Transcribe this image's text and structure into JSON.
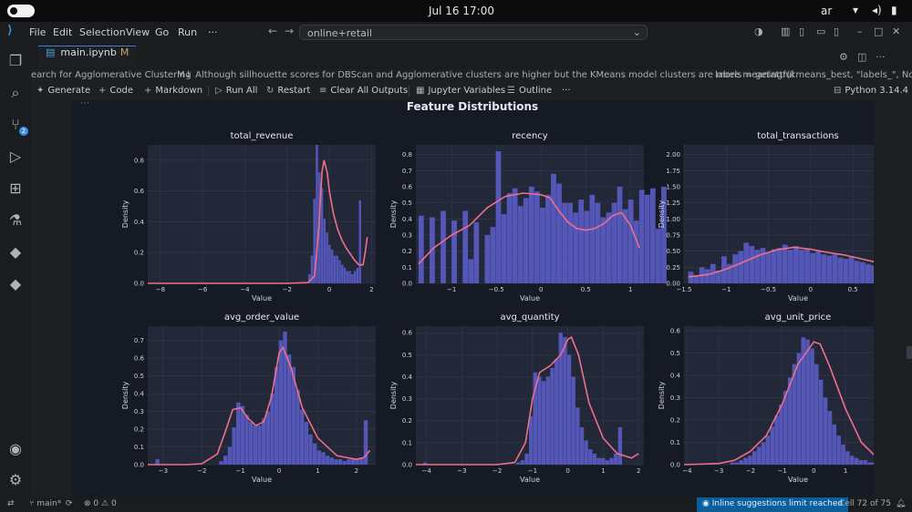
{
  "system_bar": {
    "clock": "Jul 16  17:00",
    "user": "ar"
  },
  "titlebar": {
    "menus": [
      "File",
      "Edit",
      "Selection",
      "View",
      "Go",
      "Run",
      "···"
    ],
    "search_text": "online+retail"
  },
  "tab": {
    "name": "main.ipynb",
    "modified": "M"
  },
  "breadcrumbs": {
    "b1": "earch for Agglomerative Clustering",
    "b2": "M↓ Although sillhouette scores for DBScan and Agglomerative clusters are higher but the KMeans model clusters are more meaningful",
    "b3": "labels = getattr(kmeans_best, \"labels_\", None)"
  },
  "toolbar": {
    "generate": "Generate",
    "code": "Code",
    "markdown": "Markdown",
    "run_all": "Run All",
    "restart": "Restart",
    "clear_outputs": "Clear All Outputs",
    "jupyter_variables": "Jupyter Variables",
    "outline": "Outline",
    "more": "···",
    "kernel": "Python 3.14.4"
  },
  "status": {
    "branch": "main*",
    "problems": "0",
    "warnings": "0",
    "inline_limit": "Inline suggestions limit reached",
    "cell_position": "Cell 72 of 75"
  },
  "colors": {
    "bars": "#5a5cc6",
    "kde": "#ef6f8a",
    "figure_bg": "#161a25",
    "axes_bg": "#232838"
  },
  "chart_data": [
    {
      "type": "histogram",
      "figure_title": "Feature Distributions",
      "title": "total_revenue",
      "xlabel": "Value",
      "ylabel": "Density",
      "xlim": [
        -8.6,
        2.2
      ],
      "ylim": [
        0,
        0.9
      ],
      "xticks": [
        -8,
        -6,
        -4,
        -2,
        0,
        2
      ],
      "yticks": [
        0.0,
        0.2,
        0.4,
        0.6,
        0.8
      ],
      "bin_edges_start": -1.0,
      "bin_width": 0.12,
      "bars": [
        0.06,
        0.18,
        0.55,
        0.9,
        0.72,
        0.62,
        0.42,
        0.33,
        0.25,
        0.22,
        0.18,
        0.18,
        0.15,
        0.12,
        0.1,
        0.08,
        0.08,
        0.06,
        0.08,
        0.1,
        0.54
      ],
      "kde_x": [
        -8.6,
        -2,
        -1,
        -0.7,
        -0.5,
        -0.35,
        -0.25,
        -0.1,
        0,
        0.2,
        0.4,
        0.6,
        0.8,
        1.0,
        1.2,
        1.4,
        1.6,
        1.7,
        1.8
      ],
      "kde_y": [
        0,
        0,
        0.005,
        0.05,
        0.35,
        0.72,
        0.8,
        0.72,
        0.6,
        0.45,
        0.35,
        0.28,
        0.23,
        0.19,
        0.15,
        0.12,
        0.12,
        0.2,
        0.3
      ]
    },
    {
      "type": "histogram",
      "title": "recency",
      "xlabel": "Value",
      "ylabel": "Density",
      "xlim": [
        -1.4,
        1.15
      ],
      "ylim": [
        0,
        0.86
      ],
      "xticks": [
        -1.0,
        -0.5,
        0.0,
        0.5,
        1.0
      ],
      "yticks": [
        0.0,
        0.1,
        0.2,
        0.3,
        0.4,
        0.5,
        0.6,
        0.7,
        0.8
      ],
      "bin_edges_start": -1.37,
      "bin_width": 0.0617,
      "bars": [
        0.42,
        0.0,
        0.41,
        0.0,
        0.45,
        0.0,
        0.39,
        0.0,
        0.45,
        0.15,
        0.38,
        0.0,
        0.3,
        0.35,
        0.82,
        0.43,
        0.56,
        0.59,
        0.48,
        0.53,
        0.6,
        0.57,
        0.47,
        0.55,
        0.68,
        0.62,
        0.5,
        0.5,
        0.44,
        0.52,
        0.45,
        0.55,
        0.5,
        0.41,
        0.44,
        0.5,
        0.6,
        0.46,
        0.52,
        0.39,
        0.58,
        0.55,
        0.59,
        0.34,
        0.6
      ],
      "kde_x": [
        -1.37,
        -1.2,
        -1.0,
        -0.8,
        -0.6,
        -0.4,
        -0.2,
        0,
        0.1,
        0.2,
        0.3,
        0.4,
        0.5,
        0.6,
        0.7,
        0.8,
        0.9,
        1.0,
        1.1
      ],
      "kde_y": [
        0.12,
        0.22,
        0.3,
        0.36,
        0.47,
        0.54,
        0.56,
        0.55,
        0.53,
        0.45,
        0.38,
        0.34,
        0.33,
        0.34,
        0.37,
        0.42,
        0.44,
        0.36,
        0.22
      ]
    },
    {
      "type": "histogram",
      "title": "total_transactions",
      "xlabel": "Value",
      "ylabel": "Density",
      "xlim": [
        -1.5,
        1.2
      ],
      "ylim": [
        0,
        2.15
      ],
      "xticks": [
        -1.5,
        -1.0,
        -0.5,
        0.0,
        0.5,
        1.0
      ],
      "yticks": [
        0.0,
        0.25,
        0.5,
        0.75,
        1.0,
        1.25,
        1.5,
        1.75,
        2.0
      ],
      "bin_edges_start": -1.45,
      "bin_width": 0.0656,
      "bars": [
        0.18,
        0.12,
        0.25,
        0.22,
        0.3,
        0.2,
        0.42,
        0.3,
        0.45,
        0.5,
        0.63,
        0.58,
        0.52,
        0.55,
        0.47,
        0.53,
        0.55,
        0.6,
        0.52,
        0.58,
        0.52,
        0.53,
        0.47,
        0.5,
        0.45,
        0.43,
        0.45,
        0.4,
        0.38,
        0.42,
        0.35,
        0.33,
        0.3,
        0.28,
        0.35,
        0.3,
        0.25,
        0.3,
        2.05
      ],
      "kde_x": [
        -1.45,
        -1.2,
        -1.0,
        -0.8,
        -0.6,
        -0.4,
        -0.2,
        0,
        0.2,
        0.4,
        0.6,
        0.8,
        0.9,
        1.0,
        1.1
      ],
      "kde_y": [
        0.1,
        0.14,
        0.22,
        0.33,
        0.44,
        0.52,
        0.56,
        0.53,
        0.48,
        0.44,
        0.38,
        0.32,
        0.28,
        0.33,
        0.41
      ]
    },
    {
      "type": "histogram",
      "title": "avg_order_value",
      "xlabel": "Value",
      "ylabel": "Density",
      "xlim": [
        -3.4,
        2.5
      ],
      "ylim": [
        0,
        0.78
      ],
      "xticks": [
        -3,
        -2,
        -1,
        0,
        1,
        2
      ],
      "yticks": [
        0.0,
        0.1,
        0.2,
        0.3,
        0.4,
        0.5,
        0.6,
        0.7
      ],
      "bin_edges_start": -3.2,
      "bin_width": 0.11,
      "bars": [
        0.03,
        0.0,
        0.0,
        0.0,
        0.0,
        0.0,
        0.0,
        0.0,
        0.0,
        0.0,
        0.0,
        0.0,
        0.0,
        0.0,
        0.0,
        0.02,
        0.05,
        0.1,
        0.21,
        0.35,
        0.33,
        0.28,
        0.24,
        0.22,
        0.22,
        0.26,
        0.3,
        0.4,
        0.55,
        0.7,
        0.75,
        0.62,
        0.55,
        0.42,
        0.31,
        0.24,
        0.17,
        0.12,
        0.08,
        0.07,
        0.05,
        0.04,
        0.03,
        0.03,
        0.02,
        0.03,
        0.03,
        0.03,
        0.04,
        0.25
      ],
      "kde_x": [
        -3.4,
        -2.4,
        -2.0,
        -1.6,
        -1.4,
        -1.2,
        -1.0,
        -0.8,
        -0.6,
        -0.4,
        -0.2,
        0,
        0.1,
        0.3,
        0.6,
        1.0,
        1.5,
        2.0,
        2.2,
        2.35
      ],
      "kde_y": [
        0,
        0,
        0.005,
        0.06,
        0.18,
        0.31,
        0.32,
        0.26,
        0.22,
        0.24,
        0.38,
        0.63,
        0.66,
        0.55,
        0.32,
        0.15,
        0.05,
        0.03,
        0.04,
        0.08
      ]
    },
    {
      "type": "histogram",
      "title": "avg_quantity",
      "xlabel": "Value",
      "ylabel": "Density",
      "xlim": [
        -4.3,
        2.15
      ],
      "ylim": [
        0,
        0.63
      ],
      "xticks": [
        -4,
        -3,
        -2,
        -1,
        0,
        1,
        2
      ],
      "yticks": [
        0.0,
        0.1,
        0.2,
        0.3,
        0.4,
        0.5,
        0.6
      ],
      "bin_edges_start": -4.1,
      "bin_width": 0.12,
      "bars": [
        0.01,
        0.0,
        0.0,
        0.0,
        0.0,
        0.0,
        0.0,
        0.0,
        0.0,
        0.0,
        0.0,
        0.0,
        0.0,
        0.0,
        0.0,
        0.0,
        0.0,
        0.0,
        0.0,
        0.0,
        0.0,
        0.0,
        0.01,
        0.02,
        0.05,
        0.22,
        0.42,
        0.4,
        0.38,
        0.4,
        0.44,
        0.48,
        0.6,
        0.58,
        0.5,
        0.4,
        0.26,
        0.17,
        0.11,
        0.07,
        0.05,
        0.03,
        0.03,
        0.02,
        0.03,
        0.05,
        0.17
      ],
      "kde_x": [
        -4.3,
        -2.0,
        -1.5,
        -1.2,
        -1.0,
        -0.8,
        -0.5,
        -0.2,
        0,
        0.1,
        0.3,
        0.6,
        1.0,
        1.4,
        1.8,
        2.0
      ],
      "kde_y": [
        0,
        0,
        0.01,
        0.1,
        0.3,
        0.42,
        0.45,
        0.5,
        0.57,
        0.58,
        0.5,
        0.28,
        0.12,
        0.05,
        0.03,
        0.05
      ]
    },
    {
      "type": "histogram",
      "title": "avg_unit_price",
      "xlabel": "Value",
      "ylabel": "Density",
      "xlim": [
        -4.1,
        3.1
      ],
      "ylim": [
        0,
        0.62
      ],
      "xticks": [
        -4,
        -3,
        -2,
        -1,
        0,
        1,
        2,
        3
      ],
      "yticks": [
        0.0,
        0.1,
        0.2,
        0.3,
        0.4,
        0.5,
        0.6
      ],
      "bin_edges_start": -3.9,
      "bin_width": 0.14,
      "bars": [
        0.0,
        0.0,
        0.0,
        0.0,
        0.0,
        0.0,
        0.0,
        0.0,
        0.0,
        0.01,
        0.01,
        0.02,
        0.03,
        0.04,
        0.06,
        0.08,
        0.1,
        0.13,
        0.17,
        0.22,
        0.27,
        0.33,
        0.39,
        0.45,
        0.5,
        0.57,
        0.56,
        0.52,
        0.45,
        0.38,
        0.3,
        0.24,
        0.18,
        0.13,
        0.09,
        0.06,
        0.04,
        0.03,
        0.02,
        0.02,
        0.01,
        0.01,
        0.01,
        0.01,
        0.03
      ],
      "kde_x": [
        -4.1,
        -3.0,
        -2.5,
        -2.0,
        -1.5,
        -1.0,
        -0.5,
        0,
        0.2,
        0.5,
        1.0,
        1.5,
        2.0,
        2.5,
        2.7
      ],
      "kde_y": [
        0,
        0.005,
        0.02,
        0.06,
        0.13,
        0.27,
        0.45,
        0.55,
        0.54,
        0.44,
        0.25,
        0.1,
        0.03,
        0.01,
        0.03
      ]
    }
  ]
}
